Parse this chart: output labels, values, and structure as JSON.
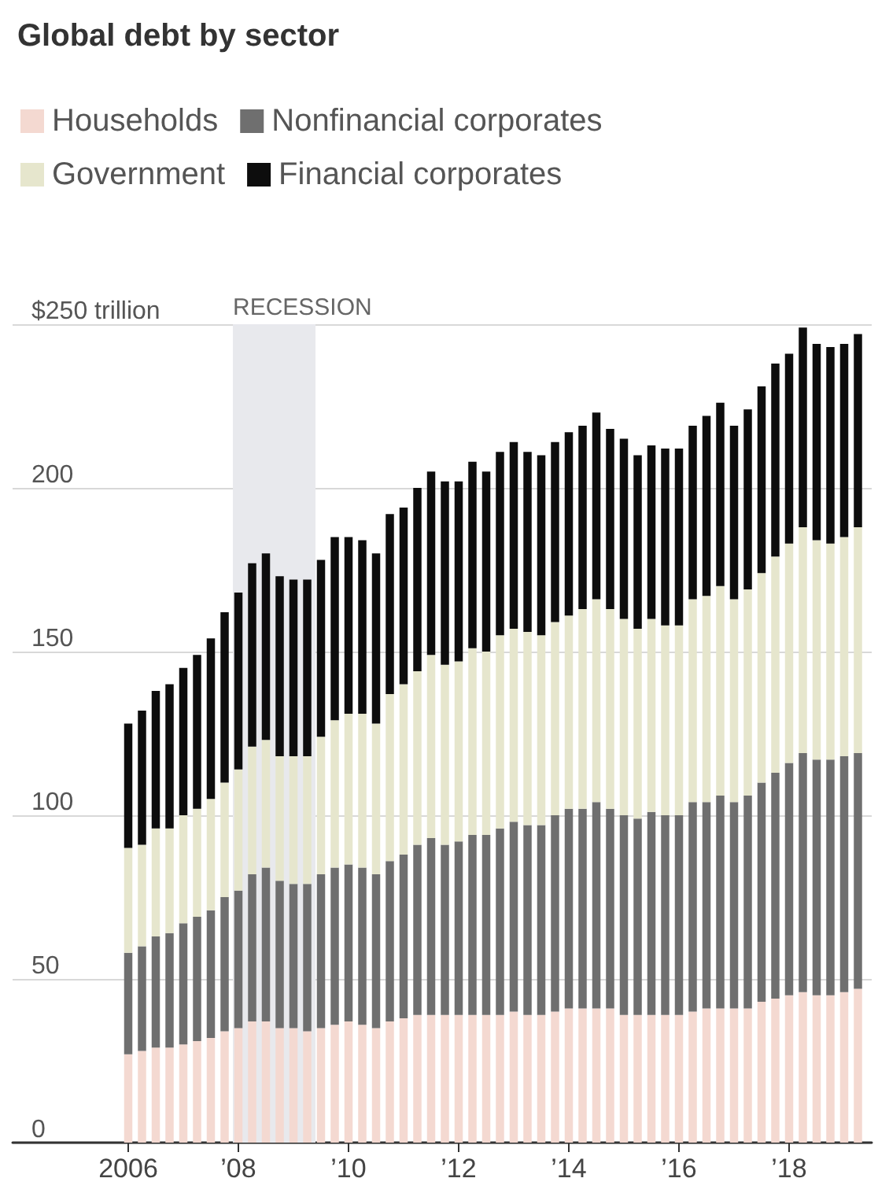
{
  "chart_data": {
    "type": "bar",
    "title": "Global debt by sector",
    "stacked": true,
    "x": [
      2006,
      2006.25,
      2006.5,
      2006.75,
      2007,
      2007.25,
      2007.5,
      2007.75,
      2008,
      2008.25,
      2008.5,
      2008.75,
      2009,
      2009.25,
      2009.5,
      2009.75,
      2010,
      2010.25,
      2010.5,
      2010.75,
      2011,
      2011.25,
      2011.5,
      2011.75,
      2012,
      2012.25,
      2012.5,
      2012.75,
      2013,
      2013.25,
      2013.5,
      2013.75,
      2014,
      2014.25,
      2014.5,
      2014.75,
      2015,
      2015.25,
      2015.5,
      2015.75,
      2016,
      2016.25,
      2016.5,
      2016.75,
      2017,
      2017.25,
      2017.5,
      2017.75,
      2018,
      2018.25,
      2018.5,
      2018.75,
      2019,
      2019.25
    ],
    "series": [
      {
        "name": "Households",
        "color": "#f4d9d1",
        "values": [
          27,
          28,
          29,
          29,
          30,
          31,
          32,
          34,
          35,
          37,
          37,
          35,
          35,
          34,
          35,
          36,
          37,
          36,
          35,
          37,
          38,
          39,
          39,
          39,
          39,
          39,
          39,
          39,
          40,
          39,
          39,
          40,
          41,
          41,
          41,
          41,
          39,
          39,
          39,
          39,
          39,
          40,
          41,
          41,
          41,
          41,
          43,
          44,
          45,
          46,
          45,
          45,
          46,
          47
        ]
      },
      {
        "name": "Nonfinancial corporates",
        "color": "#6f6f6f",
        "values": [
          31,
          32,
          34,
          35,
          37,
          38,
          39,
          41,
          42,
          45,
          47,
          45,
          44,
          45,
          47,
          48,
          48,
          48,
          47,
          49,
          50,
          52,
          54,
          52,
          53,
          55,
          55,
          57,
          58,
          58,
          58,
          60,
          61,
          61,
          63,
          61,
          61,
          60,
          62,
          61,
          61,
          64,
          63,
          65,
          63,
          65,
          67,
          69,
          71,
          73,
          72,
          72,
          72,
          72
        ]
      },
      {
        "name": "Government",
        "color": "#e6e6cd",
        "values": [
          32,
          31,
          33,
          32,
          33,
          33,
          34,
          35,
          37,
          39,
          39,
          38,
          39,
          39,
          42,
          45,
          46,
          47,
          46,
          51,
          52,
          53,
          56,
          55,
          55,
          57,
          56,
          59,
          59,
          59,
          58,
          59,
          59,
          61,
          62,
          61,
          60,
          58,
          59,
          58,
          58,
          62,
          63,
          64,
          62,
          63,
          64,
          66,
          67,
          69,
          67,
          66,
          67,
          69
        ]
      },
      {
        "name": "Financial corporates",
        "color": "#0d0d0d",
        "values": [
          38,
          41,
          42,
          44,
          45,
          47,
          49,
          52,
          54,
          56,
          57,
          55,
          54,
          54,
          54,
          56,
          54,
          53,
          52,
          55,
          54,
          56,
          56,
          56,
          55,
          57,
          55,
          56,
          57,
          55,
          55,
          55,
          56,
          56,
          57,
          55,
          55,
          53,
          53,
          54,
          54,
          53,
          55,
          56,
          53,
          55,
          57,
          59,
          58,
          61,
          60,
          60,
          59,
          59
        ]
      }
    ],
    "xlim": [
      2003.9,
      2019.5
    ],
    "xticks": [
      2006,
      {
        "value": 2008,
        "label": "’08"
      },
      {
        "value": 2010,
        "label": "’10"
      },
      {
        "value": 2012,
        "label": "’12"
      },
      {
        "value": 2014,
        "label": "’14"
      },
      {
        "value": 2016,
        "label": "’16"
      },
      {
        "value": 2018,
        "label": "’18"
      }
    ],
    "ylim": [
      0,
      250
    ],
    "yticks": [
      0,
      50,
      100,
      150,
      200,
      {
        "value": 250,
        "label": "$250 trillion"
      }
    ],
    "bands": [
      {
        "axis": "x",
        "from": 2007.9,
        "to": 2009.4,
        "label": "RECESSION",
        "color": "#e8e9ed"
      }
    ],
    "grid": "y",
    "legend": "top left"
  }
}
